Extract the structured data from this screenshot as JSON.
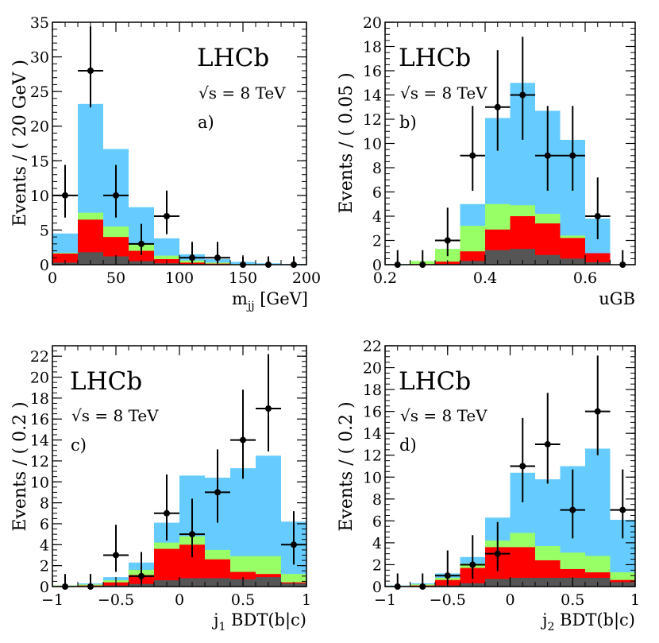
{
  "colors": {
    "total": "#66ccff",
    "green": "#99ff66",
    "red": "#ff0000",
    "grey": "#555555",
    "data": "#000000"
  },
  "chart_data": [
    {
      "id": "a",
      "type": "stacked-histogram",
      "experiment": "LHCb",
      "energy": "√s = 8 TeV",
      "label": "a)",
      "ylabel": "Events / ( 20 GeV )",
      "xlabel_main": "m",
      "xlabel_sub": "jj",
      "xlabel_rest": " [GeV]",
      "xlim": [
        0,
        200
      ],
      "ylim": [
        0,
        35
      ],
      "xticks": [
        0,
        50,
        100,
        150,
        200
      ],
      "xtick_labels": [
        "0",
        "50",
        "100",
        "150",
        "200"
      ],
      "yticks": [
        0,
        5,
        10,
        15,
        20,
        25,
        30,
        35
      ],
      "ytick_labels": [
        "0",
        "5",
        "10",
        "15",
        "20",
        "25",
        "30",
        "35"
      ],
      "x_minor": 10,
      "y_minor": 1,
      "bin_edges": [
        0,
        20,
        40,
        60,
        80,
        100,
        120,
        140,
        160,
        180,
        200
      ],
      "stack_totals": {
        "total": [
          4.5,
          23.2,
          16.7,
          8.3,
          3.8,
          1.5,
          0.8,
          0.4,
          0.2,
          0.1
        ],
        "green": [
          1.7,
          7.5,
          5.5,
          2.9,
          1.3,
          0.6,
          0.3,
          0.1,
          0.05,
          0.0
        ],
        "red": [
          1.6,
          6.5,
          4.0,
          2.0,
          0.8,
          0.3,
          0.15,
          0.05,
          0.0,
          0.0
        ],
        "grey": [
          0.3,
          1.8,
          1.2,
          0.5,
          0.2,
          0.1,
          0.05,
          0.0,
          0.0,
          0.0
        ]
      },
      "points": {
        "x": [
          10,
          30,
          50,
          70,
          90,
          110,
          130,
          150,
          170,
          190
        ],
        "y": [
          10,
          28,
          10,
          3,
          7,
          1,
          1,
          0,
          0,
          0
        ],
        "err_up": [
          4.4,
          6.4,
          4.4,
          2.9,
          3.7,
          2.3,
          2.3,
          1.2,
          1.2,
          1.2
        ],
        "err_down": [
          3.2,
          5.3,
          3.2,
          1.6,
          2.6,
          0.8,
          0.8,
          0,
          0,
          0
        ],
        "xerr": [
          10,
          10,
          10,
          10,
          10,
          10,
          10,
          0,
          0,
          0
        ]
      }
    },
    {
      "id": "b",
      "type": "stacked-histogram",
      "experiment": "LHCb",
      "energy": "√s = 8 TeV",
      "label": "b)",
      "ylabel": "Events / ( 0.05 )",
      "xlabel_main": "uGB",
      "xlabel_sub": "",
      "xlabel_rest": "",
      "xlim": [
        0.2,
        0.7
      ],
      "ylim": [
        0,
        20
      ],
      "xticks": [
        0.2,
        0.4,
        0.6
      ],
      "xtick_labels": [
        "0.2",
        "0.4",
        "0.6"
      ],
      "yticks": [
        0,
        2,
        4,
        6,
        8,
        10,
        12,
        14,
        16,
        18,
        20
      ],
      "ytick_labels": [
        "0",
        "2",
        "4",
        "6",
        "8",
        "10",
        "12",
        "14",
        "16",
        "18",
        "20"
      ],
      "x_minor": 0.025,
      "y_minor": 0.5,
      "bin_edges": [
        0.2,
        0.25,
        0.3,
        0.35,
        0.4,
        0.45,
        0.5,
        0.55,
        0.6,
        0.65,
        0.7
      ],
      "stack_totals": {
        "total": [
          0.05,
          0.3,
          1.3,
          5.0,
          12.1,
          15.0,
          12.7,
          10.3,
          3.8,
          0.0
        ],
        "green": [
          0.05,
          0.3,
          1.3,
          3.2,
          5.0,
          4.9,
          4.2,
          2.4,
          0.95,
          0.0
        ],
        "red": [
          0.0,
          0.05,
          0.25,
          1.1,
          2.9,
          4.0,
          3.4,
          2.2,
          0.95,
          0.0
        ],
        "grey": [
          0.0,
          0.0,
          0.05,
          0.3,
          1.2,
          1.3,
          0.8,
          0.5,
          0.2,
          0.0
        ]
      },
      "points": {
        "x": [
          0.225,
          0.275,
          0.325,
          0.375,
          0.425,
          0.475,
          0.525,
          0.575,
          0.625,
          0.675
        ],
        "y": [
          0,
          0,
          2,
          9,
          13,
          14,
          9,
          9,
          4,
          0
        ],
        "err_up": [
          1.2,
          1.2,
          2.7,
          4.1,
          4.7,
          4.8,
          4.1,
          4.1,
          3.2,
          1.2
        ],
        "err_down": [
          0,
          0,
          1.3,
          2.9,
          3.6,
          3.7,
          2.9,
          2.9,
          1.9,
          0
        ],
        "xerr": [
          0,
          0,
          0.025,
          0.025,
          0.025,
          0.025,
          0.025,
          0.025,
          0.025,
          0
        ]
      }
    },
    {
      "id": "c",
      "type": "stacked-histogram",
      "experiment": "LHCb",
      "energy": "√s = 8 TeV",
      "label": "c)",
      "ylabel": "Events / ( 0.2 )",
      "xlabel_main": "j",
      "xlabel_sub": "1",
      "xlabel_rest": " BDT(b|c)",
      "xlim": [
        -1,
        1
      ],
      "ylim": [
        0,
        23
      ],
      "xticks": [
        -1,
        -0.5,
        0,
        0.5,
        1
      ],
      "xtick_labels": [
        "−1",
        "−0.5",
        "0",
        "0.5",
        "1"
      ],
      "yticks": [
        0,
        2,
        4,
        6,
        8,
        10,
        12,
        14,
        16,
        18,
        20,
        22
      ],
      "ytick_labels": [
        "0",
        "2",
        "4",
        "6",
        "8",
        "10",
        "12",
        "14",
        "16",
        "18",
        "20",
        "22"
      ],
      "x_minor": 0.1,
      "y_minor": 0.5,
      "bin_edges": [
        -1,
        -0.8,
        -0.6,
        -0.4,
        -0.2,
        0,
        0.2,
        0.4,
        0.6,
        0.8,
        1
      ],
      "stack_totals": {
        "total": [
          0.1,
          0.3,
          0.9,
          2.3,
          6.1,
          10.6,
          10.4,
          11.3,
          12.5,
          6.2
        ],
        "green": [
          0.1,
          0.2,
          0.6,
          1.6,
          4.2,
          4.8,
          3.5,
          2.9,
          2.9,
          1.2
        ],
        "red": [
          0.05,
          0.1,
          0.4,
          1.1,
          3.6,
          4.0,
          2.6,
          1.4,
          1.2,
          0.4
        ],
        "grey": [
          0.0,
          0.05,
          0.1,
          0.25,
          0.6,
          0.8,
          0.8,
          0.7,
          0.9,
          0.3
        ]
      },
      "points": {
        "x": [
          -0.9,
          -0.7,
          -0.5,
          -0.3,
          -0.1,
          0.1,
          0.3,
          0.5,
          0.7,
          0.9
        ],
        "y": [
          0,
          0,
          3,
          1,
          7,
          5,
          9,
          14,
          17,
          4
        ],
        "err_up": [
          1.2,
          1.2,
          2.9,
          2.3,
          3.7,
          3.4,
          4.1,
          4.8,
          5.2,
          3.2
        ],
        "err_down": [
          0,
          0,
          1.6,
          0.8,
          2.6,
          2.2,
          2.9,
          3.7,
          4.1,
          1.9
        ],
        "xerr": [
          0,
          0,
          0.1,
          0.1,
          0.1,
          0.1,
          0.1,
          0.1,
          0.1,
          0.1
        ]
      }
    },
    {
      "id": "d",
      "type": "stacked-histogram",
      "experiment": "LHCb",
      "energy": "√s = 8 TeV",
      "label": "d)",
      "ylabel": "Events / ( 0.2 )",
      "xlabel_main": "j",
      "xlabel_sub": "2",
      "xlabel_rest": " BDT(b|c)",
      "xlim": [
        -1,
        1
      ],
      "ylim": [
        0,
        22
      ],
      "xticks": [
        -1,
        -0.5,
        0,
        0.5,
        1
      ],
      "xtick_labels": [
        "−1",
        "−0.5",
        "0",
        "0.5",
        "1"
      ],
      "yticks": [
        0,
        2,
        4,
        6,
        8,
        10,
        12,
        14,
        16,
        18,
        20,
        22
      ],
      "ytick_labels": [
        "0",
        "2",
        "4",
        "6",
        "8",
        "10",
        "12",
        "14",
        "16",
        "18",
        "20",
        "22"
      ],
      "x_minor": 0.1,
      "y_minor": 0.5,
      "bin_edges": [
        -1,
        -0.8,
        -0.6,
        -0.4,
        -0.2,
        0,
        0.2,
        0.4,
        0.6,
        0.8,
        1
      ],
      "stack_totals": {
        "total": [
          0.1,
          0.3,
          1.2,
          2.7,
          6.3,
          10.4,
          9.8,
          11.0,
          12.6,
          6.1
        ],
        "green": [
          0.05,
          0.2,
          0.8,
          2.1,
          4.2,
          4.9,
          3.7,
          3.1,
          2.8,
          1.3
        ],
        "red": [
          0.05,
          0.1,
          0.6,
          1.7,
          3.6,
          3.6,
          2.4,
          1.6,
          1.3,
          0.6
        ],
        "grey": [
          0.0,
          0.05,
          0.1,
          0.3,
          0.7,
          0.8,
          0.8,
          0.8,
          0.8,
          0.4
        ]
      },
      "points": {
        "x": [
          -0.9,
          -0.7,
          -0.5,
          -0.3,
          -0.1,
          0.1,
          0.3,
          0.5,
          0.7,
          0.9
        ],
        "y": [
          0,
          0,
          1,
          2,
          3,
          11,
          13,
          7,
          16,
          7
        ],
        "err_up": [
          1.2,
          1.2,
          2.3,
          2.7,
          2.9,
          4.4,
          4.7,
          3.7,
          5.1,
          3.7
        ],
        "err_down": [
          0,
          0,
          0.8,
          1.3,
          1.6,
          3.3,
          3.6,
          2.6,
          4.0,
          2.6
        ],
        "xerr": [
          0,
          0,
          0.1,
          0.1,
          0.1,
          0.1,
          0.1,
          0.1,
          0.1,
          0.1
        ]
      }
    }
  ]
}
